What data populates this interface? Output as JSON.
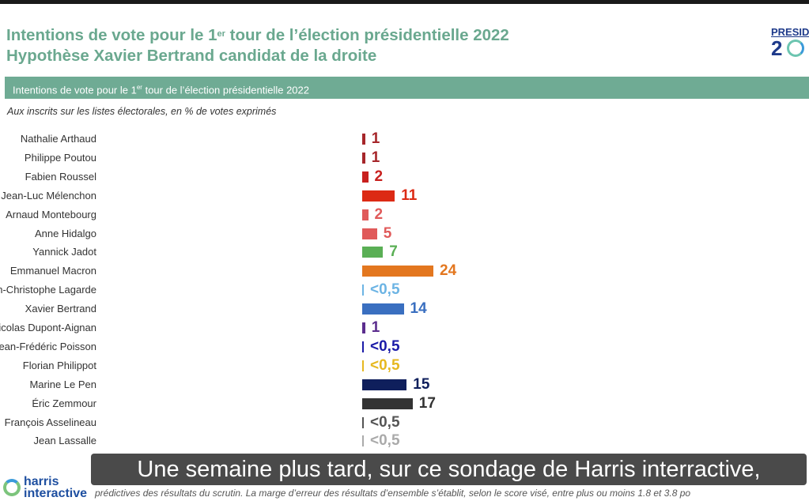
{
  "header": {
    "title_line1_pre": "Intentions de vote pour le 1",
    "title_line1_sup": "er",
    "title_line1_post": " tour de l’élection présidentielle 2022",
    "title_line2": "Hypothèse Xavier Bertrand candidat de la droite",
    "logo_line1": "PRESID",
    "logo_line2": "2"
  },
  "band": {
    "pre": "Intentions de vote pour le 1",
    "sup": "er",
    "post": " tour de l’élection présidentielle 2022"
  },
  "subtitle": "Aux inscrits sur les listes électorales, en % de votes exprimés",
  "chart_data": {
    "type": "bar",
    "orientation": "horizontal",
    "title": "Intentions de vote pour le 1er tour de l’élection présidentielle 2022",
    "categories": [
      "Nathalie Arthaud",
      "Philippe Poutou",
      "Fabien Roussel",
      "Jean-Luc Mélenchon",
      "Arnaud Montebourg",
      "Anne Hidalgo",
      "Yannick Jadot",
      "Emmanuel Macron",
      "Jean-Christophe Lagarde",
      "Xavier Bertrand",
      "Nicolas Dupont-Aignan",
      "Jean-Frédéric Poisson",
      "Florian Philippot",
      "Marine Le Pen",
      "Éric Zemmour",
      "François Asselineau",
      "Jean Lassalle"
    ],
    "values": [
      1,
      1,
      2,
      11,
      2,
      5,
      7,
      24,
      0.5,
      14,
      1,
      0.5,
      0.5,
      15,
      17,
      0.5,
      0.5
    ],
    "labels": [
      "1",
      "1",
      "2",
      "11",
      "2",
      "5",
      "7",
      "24",
      "<0,5",
      "14",
      "1",
      "<0,5",
      "<0,5",
      "15",
      "17",
      "<0,5",
      "<0,5"
    ],
    "colors": [
      "#a6262a",
      "#a6262a",
      "#c8201e",
      "#dc2a14",
      "#e05a5a",
      "#e05a5a",
      "#5aaf55",
      "#e3771f",
      "#6cb4e4",
      "#3a6fc0",
      "#5b2d8e",
      "#1b1ba8",
      "#e6b820",
      "#0f1f5c",
      "#333333",
      "#555555",
      "#aaaaaa"
    ],
    "xlabel": "",
    "ylabel": "",
    "xlim": [
      0,
      24
    ]
  },
  "caption": "Une semaine plus tard, sur ce sondage de Harris interractive,",
  "footnote": "prédictives des résultats du scrutin. La marge d’erreur des résultats d’ensemble s’établit, selon le score visé, entre plus ou moins 1.8 et 3.8 po",
  "brand": {
    "line1": "harris",
    "line2": "interactive"
  }
}
